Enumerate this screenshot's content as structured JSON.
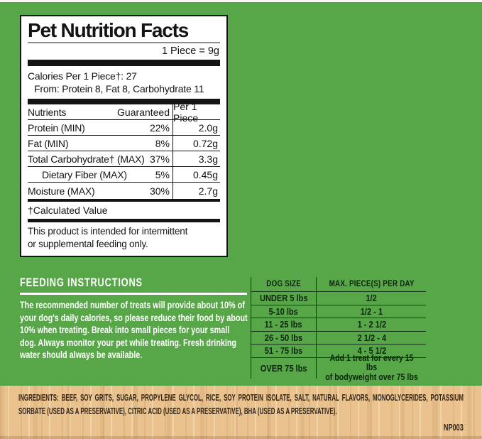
{
  "colors": {
    "background_green": "#57a648",
    "panel_ink": "#141414",
    "table_ink": "#0c260c",
    "ingredients_tan": "#eac28e",
    "ingredients_ink": "#33271a",
    "white": "#ffffff"
  },
  "facts_panel": {
    "title": "Pet Nutrition Facts",
    "serving": "1 Piece = 9g",
    "calories_line1": "Calories Per 1 Piece†: 27",
    "calories_line2": "From: Protein 8, Fat 8, Carbohydrate 11",
    "table": {
      "headers": [
        "Nutrients",
        "Guaranteed",
        "Per 1 Piece"
      ],
      "rows": [
        {
          "name": "Protein (MIN)",
          "guaranteed": "22%",
          "per_piece": "2.0g"
        },
        {
          "name": "Fat (MIN)",
          "guaranteed": "8%",
          "per_piece": "0.72g"
        },
        {
          "name": "Total Carbohydrate†  (MAX)",
          "guaranteed": "37%",
          "per_piece": "3.3g"
        },
        {
          "name": "Dietary Fiber (MAX)",
          "guaranteed": "5%",
          "per_piece": "0.45g"
        },
        {
          "name": "Moisture (MAX)",
          "guaranteed": "30%",
          "per_piece": "2.7g"
        }
      ]
    },
    "footnote_dagger": "†Calculated Value",
    "statement": "This product is intended for intermittent\nor supplemental feeding only."
  },
  "feeding": {
    "heading": "FEEDING INSTRUCTIONS",
    "body": "The recommended number of treats will provide about 10% of\nyour dog's daily calories, so please reduce their food by about\n10% when treating. Break into small pieces for your small\ndog. Always monitor your pet while treating. Fresh drinking\nwater should always be available."
  },
  "dog_table": {
    "headers": [
      "DOG SIZE",
      "MAX. PIECE(S) PER DAY"
    ],
    "rows": [
      {
        "size": "UNDER 5 lbs",
        "pieces": "1/2"
      },
      {
        "size": "5-10 lbs",
        "pieces": "1/2 - 1"
      },
      {
        "size": "11 - 25 lbs",
        "pieces": "1 - 2 1/2"
      },
      {
        "size": "26 - 50 lbs",
        "pieces": "2 1/2 - 4"
      },
      {
        "size": "51 - 75 lbs",
        "pieces": "4 - 5 1/2"
      },
      {
        "size": "OVER 75 lbs",
        "pieces": "Add 1 treat for every 15 lbs\nof bodyweight over 75 lbs"
      }
    ]
  },
  "ingredients": {
    "label": "INGREDIENTS:",
    "text": "BEEF, SOY GRITS, SUGAR, PROPYLENE GLYCOL, RICE, SOY PROTEIN ISOLATE, SALT, NATURAL FLAVORS, MONOGLYCERIDES, POTASSIUM SORBATE (USED AS A PRESERVATIVE), CITRIC ACID (USED AS A PRESERVATIVE), BHA (USED AS A PRESERVATIVE).",
    "code": "NP003"
  }
}
